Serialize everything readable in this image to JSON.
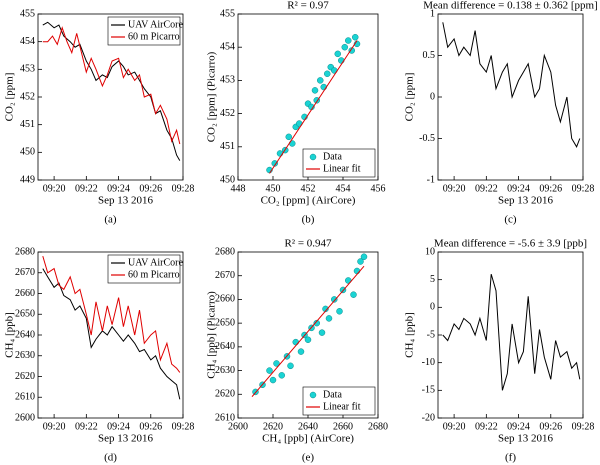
{
  "chart_data": [
    {
      "type": "line",
      "ylabel": "CO₂ [ppm]",
      "xlabel": "Sep 13 2016",
      "caption": "(a)",
      "legend": "upper right",
      "xlim": [
        19,
        28
      ],
      "xticks": [
        {
          "value": 20,
          "label": "09:20"
        },
        {
          "value": 22,
          "label": "09:22"
        },
        {
          "value": 24,
          "label": "09:24"
        },
        {
          "value": 26,
          "label": "09:26"
        },
        {
          "value": 28,
          "label": "09:28"
        }
      ],
      "ylim": [
        449,
        455
      ],
      "yticks": [
        449,
        450,
        451,
        452,
        453,
        454,
        455
      ],
      "series": [
        {
          "name": "UAV AirCore",
          "color": "#000000",
          "x": [
            19.3,
            19.6,
            20.0,
            20.3,
            20.6,
            21.0,
            21.3,
            21.6,
            22.0,
            22.3,
            22.6,
            23.0,
            23.3,
            23.6,
            24.0,
            24.3,
            24.6,
            25.0,
            25.3,
            25.6,
            26.0,
            26.3,
            26.6,
            27.0,
            27.3,
            27.6,
            27.8
          ],
          "values": [
            454.6,
            454.7,
            454.5,
            454.6,
            454.2,
            454.0,
            453.8,
            453.9,
            453.3,
            453.0,
            452.6,
            452.8,
            452.7,
            453.1,
            453.3,
            453.1,
            452.8,
            452.9,
            452.6,
            452.3,
            452.0,
            451.4,
            451.5,
            450.8,
            450.5,
            449.9,
            449.7
          ]
        },
        {
          "name": "60 m Picarro",
          "color": "#e00000",
          "x": [
            19.3,
            19.6,
            19.9,
            20.2,
            20.5,
            20.8,
            21.1,
            21.4,
            21.7,
            22.0,
            22.3,
            22.6,
            23.0,
            23.3,
            23.6,
            24.0,
            24.3,
            24.6,
            25.0,
            25.3,
            25.6,
            26.0,
            26.3,
            26.6,
            27.0,
            27.3,
            27.6,
            27.8
          ],
          "values": [
            454.0,
            454.0,
            454.2,
            453.9,
            454.5,
            454.0,
            453.6,
            454.3,
            453.6,
            452.9,
            453.4,
            453.0,
            452.4,
            452.8,
            453.3,
            453.4,
            452.7,
            453.0,
            452.6,
            452.8,
            452.0,
            452.1,
            451.4,
            451.7,
            451.2,
            450.4,
            450.8,
            450.3
          ]
        }
      ]
    },
    {
      "type": "scatter",
      "title": "R² = 0.97",
      "xlabel": "CO₂ [ppm] (AirCore)",
      "ylabel": "CO₂ [ppm] (Picarro)",
      "caption": "(b)",
      "legend": "lower right",
      "xlim": [
        448,
        456
      ],
      "xticks": [
        448,
        450,
        452,
        454,
        456
      ],
      "ylim": [
        450,
        455
      ],
      "yticks": [
        450,
        451,
        452,
        453,
        454,
        455
      ],
      "series": [
        {
          "name": "Data",
          "color": "#1ad3d3",
          "x": [
            449.8,
            450.1,
            450.4,
            450.7,
            450.9,
            451.1,
            451.3,
            451.5,
            451.8,
            452.0,
            452.2,
            452.4,
            452.5,
            452.7,
            452.9,
            453.1,
            453.3,
            453.5,
            453.7,
            453.9,
            454.1,
            454.3,
            454.5,
            454.7,
            454.8
          ],
          "values": [
            450.3,
            450.5,
            450.8,
            450.9,
            451.3,
            451.1,
            451.6,
            451.7,
            451.9,
            452.3,
            452.2,
            452.7,
            452.4,
            453.0,
            452.8,
            453.2,
            453.4,
            453.3,
            453.8,
            453.6,
            454.0,
            454.2,
            453.9,
            454.3,
            454.1
          ]
        },
        {
          "name": "Linear fit",
          "color": "#e00000",
          "style": "line",
          "x": [
            449.8,
            454.8
          ],
          "values": [
            450.2,
            454.2
          ]
        }
      ]
    },
    {
      "type": "line",
      "title": "Mean difference = 0.138 ± 0.362 [ppm]",
      "ylabel": "CO₂ [ppm]",
      "xlabel": "Sep 13 2016",
      "caption": "(c)",
      "xlim": [
        19,
        28
      ],
      "xticks": [
        {
          "value": 20,
          "label": "09:20"
        },
        {
          "value": 22,
          "label": "09:22"
        },
        {
          "value": 24,
          "label": "09:24"
        },
        {
          "value": 26,
          "label": "09:26"
        },
        {
          "value": 28,
          "label": "09:28"
        }
      ],
      "ylim": [
        -1,
        1
      ],
      "yticks": [
        -1,
        -0.5,
        0,
        0.5,
        1
      ],
      "series": [
        {
          "color": "#000000",
          "x": [
            19.3,
            19.6,
            20.0,
            20.3,
            20.6,
            21.0,
            21.3,
            21.6,
            22.0,
            22.3,
            22.6,
            23.0,
            23.3,
            23.6,
            24.0,
            24.3,
            24.6,
            25.0,
            25.3,
            25.6,
            26.0,
            26.3,
            26.6,
            27.0,
            27.3,
            27.6,
            27.8
          ],
          "values": [
            0.9,
            0.6,
            0.7,
            0.5,
            0.6,
            0.5,
            0.8,
            0.4,
            0.3,
            0.5,
            0.1,
            0.3,
            0.4,
            0.0,
            0.2,
            0.3,
            0.4,
            0.0,
            0.1,
            0.5,
            0.3,
            -0.1,
            -0.3,
            0.0,
            -0.5,
            -0.6,
            -0.5
          ]
        }
      ]
    },
    {
      "type": "line",
      "ylabel": "CH₄ [ppb]",
      "xlabel": "Sep 13 2016",
      "caption": "(d)",
      "legend": "upper right",
      "xlim": [
        19,
        28
      ],
      "xticks": [
        {
          "value": 20,
          "label": "09:20"
        },
        {
          "value": 22,
          "label": "09:22"
        },
        {
          "value": 24,
          "label": "09:24"
        },
        {
          "value": 26,
          "label": "09:26"
        },
        {
          "value": 28,
          "label": "09:28"
        }
      ],
      "ylim": [
        2600,
        2680
      ],
      "yticks": [
        2600,
        2610,
        2620,
        2630,
        2640,
        2650,
        2660,
        2670,
        2680
      ],
      "series": [
        {
          "name": "UAV AirCore",
          "color": "#000000",
          "x": [
            19.3,
            19.6,
            20.0,
            20.3,
            20.6,
            21.0,
            21.3,
            21.6,
            22.0,
            22.3,
            22.6,
            23.0,
            23.3,
            23.6,
            24.0,
            24.3,
            24.6,
            25.0,
            25.3,
            25.6,
            26.0,
            26.3,
            26.6,
            27.0,
            27.3,
            27.6,
            27.8
          ],
          "values": [
            2672,
            2668,
            2663,
            2665,
            2659,
            2657,
            2652,
            2654,
            2648,
            2634,
            2638,
            2642,
            2640,
            2644,
            2640,
            2637,
            2640,
            2636,
            2632,
            2633,
            2628,
            2630,
            2624,
            2620,
            2618,
            2616,
            2609
          ]
        },
        {
          "name": "60 m Picarro",
          "color": "#e00000",
          "x": [
            19.3,
            19.6,
            20.0,
            20.3,
            20.6,
            21.0,
            21.3,
            21.6,
            22.0,
            22.3,
            22.6,
            23.0,
            23.3,
            23.6,
            24.0,
            24.3,
            24.6,
            25.0,
            25.3,
            25.6,
            26.0,
            26.3,
            26.6,
            27.0,
            27.3,
            27.6,
            27.8
          ],
          "values": [
            2678,
            2670,
            2672,
            2664,
            2662,
            2668,
            2660,
            2662,
            2650,
            2640,
            2656,
            2642,
            2654,
            2645,
            2658,
            2644,
            2654,
            2640,
            2652,
            2636,
            2640,
            2642,
            2628,
            2636,
            2626,
            2624,
            2622
          ]
        }
      ]
    },
    {
      "type": "scatter",
      "title": "R² = 0.947",
      "xlabel": "CH₄ [ppb] (AirCore)",
      "ylabel": "CH₄ [ppb] (Picarro)",
      "caption": "(e)",
      "legend": "lower right",
      "xlim": [
        2600,
        2680
      ],
      "xticks": [
        2600,
        2620,
        2640,
        2660,
        2680
      ],
      "ylim": [
        2610,
        2680
      ],
      "yticks": [
        2610,
        2620,
        2630,
        2640,
        2650,
        2660,
        2670,
        2680
      ],
      "series": [
        {
          "name": "Data",
          "color": "#1ad3d3",
          "x": [
            2610,
            2614,
            2618,
            2620,
            2622,
            2625,
            2628,
            2630,
            2633,
            2636,
            2638,
            2640,
            2642,
            2645,
            2648,
            2650,
            2652,
            2655,
            2658,
            2660,
            2663,
            2666,
            2668,
            2670,
            2672
          ],
          "values": [
            2621,
            2624,
            2630,
            2626,
            2633,
            2628,
            2636,
            2632,
            2642,
            2638,
            2645,
            2643,
            2648,
            2650,
            2646,
            2656,
            2652,
            2660,
            2655,
            2664,
            2668,
            2662,
            2672,
            2676,
            2678
          ]
        },
        {
          "name": "Linear fit",
          "color": "#e00000",
          "style": "line",
          "x": [
            2608,
            2672
          ],
          "values": [
            2619,
            2674
          ]
        }
      ]
    },
    {
      "type": "line",
      "title": "Mean difference = -5.6 ± 3.9 [ppb]",
      "ylabel": "CH₄ [ppb]",
      "xlabel": "Sep 13 2016",
      "caption": "(f)",
      "xlim": [
        19,
        28
      ],
      "xticks": [
        {
          "value": 20,
          "label": "09:20"
        },
        {
          "value": 22,
          "label": "09:22"
        },
        {
          "value": 24,
          "label": "09:24"
        },
        {
          "value": 26,
          "label": "09:26"
        },
        {
          "value": 28,
          "label": "09:28"
        }
      ],
      "ylim": [
        -20,
        10
      ],
      "yticks": [
        -20,
        -15,
        -10,
        -5,
        0,
        5,
        10
      ],
      "series": [
        {
          "color": "#000000",
          "x": [
            19.3,
            19.6,
            20.0,
            20.3,
            20.6,
            21.0,
            21.3,
            21.6,
            22.0,
            22.3,
            22.6,
            23.0,
            23.3,
            23.6,
            24.0,
            24.3,
            24.6,
            25.0,
            25.3,
            25.6,
            26.0,
            26.3,
            26.6,
            27.0,
            27.3,
            27.6,
            27.8
          ],
          "values": [
            -5,
            -6,
            -3,
            -4,
            -2,
            -3,
            -5,
            -2,
            -6,
            6,
            3,
            -15,
            -12,
            -3,
            -10,
            -8,
            2,
            -12,
            -4,
            -9,
            -13,
            -6,
            -9,
            -8,
            -11,
            -10,
            -13
          ]
        }
      ]
    }
  ]
}
